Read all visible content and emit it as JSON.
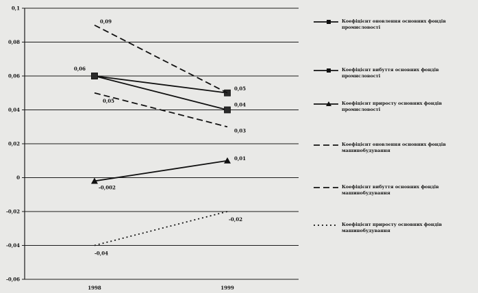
{
  "chart_data": {
    "type": "line",
    "x": [
      "1998",
      "1999"
    ],
    "ylim": [
      -0.06,
      0.1
    ],
    "y_ticks": [
      "0,1",
      "0,08",
      "0,06",
      "0,04",
      "0,02",
      "0",
      "-0,02",
      "-0,04",
      "-0,06"
    ],
    "y_tick_values": [
      0.1,
      0.08,
      0.06,
      0.04,
      0.02,
      0,
      -0.02,
      -0.04,
      -0.06
    ],
    "grid": true,
    "legend_position": "right",
    "series": [
      {
        "name": "Коефіцієнт оновлення основних фондів промисловості",
        "values": [
          0.06,
          0.05
        ],
        "style": "solid",
        "marker": "square",
        "labels": [
          "0,06",
          "0,05"
        ]
      },
      {
        "name": "Коефіцієнт вибуття основних фондів промисловості",
        "values": [
          0.06,
          0.04
        ],
        "style": "solid",
        "marker": "square",
        "labels": [
          "",
          "0,04"
        ]
      },
      {
        "name": "Коефіцієнт приросту основних фондів промисловості",
        "values": [
          -0.002,
          0.01
        ],
        "style": "solid",
        "marker": "triangle",
        "labels": [
          "-0,002",
          "0,01"
        ]
      },
      {
        "name": "Коефіцієнт оновлення основних фондів машинобудування",
        "values": [
          0.09,
          0.05
        ],
        "style": "dashed",
        "marker": "none",
        "labels": [
          "0,09",
          ""
        ]
      },
      {
        "name": "Коефіцієнт вибуття основних фондів машинобудування",
        "values": [
          0.05,
          0.03
        ],
        "style": "dashed",
        "marker": "none",
        "labels": [
          "0,05",
          "0,03"
        ]
      },
      {
        "name": "Коефіцієнт приросту основних фондів машинобудування",
        "values": [
          -0.04,
          -0.02
        ],
        "style": "dotted",
        "marker": "none",
        "labels": [
          "-0,04",
          "-0,02"
        ]
      }
    ]
  }
}
